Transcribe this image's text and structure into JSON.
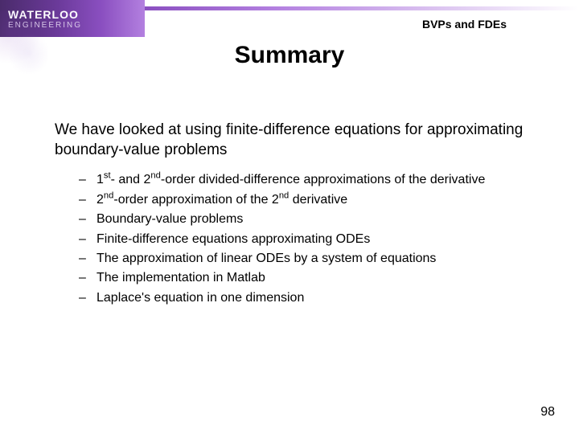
{
  "header": {
    "logo_top": "WATERLOO",
    "logo_bottom": "ENGINEERING",
    "label": "BVPs and FDEs"
  },
  "title": "Summary",
  "intro": "We have looked at using finite-difference equations for approximating boundary-value problems",
  "bullets": [
    {
      "pre": "1",
      "sup1": "st",
      "mid": "- and 2",
      "sup2": "nd",
      "post": "-order divided-difference approximations of the derivative"
    },
    {
      "pre": "2",
      "sup1": "nd",
      "mid": "-order approximation of the 2",
      "sup2": "nd",
      "post": " derivative"
    },
    {
      "pre": "Boundary-value problems",
      "sup1": "",
      "mid": "",
      "sup2": "",
      "post": ""
    },
    {
      "pre": "Finite-difference equations approximating ODEs",
      "sup1": "",
      "mid": "",
      "sup2": "",
      "post": ""
    },
    {
      "pre": "The approximation of linear ODEs by a system of equations",
      "sup1": "",
      "mid": "",
      "sup2": "",
      "post": ""
    },
    {
      "pre": "The implementation in Matlab",
      "sup1": "",
      "mid": "",
      "sup2": "",
      "post": ""
    },
    {
      "pre": "Laplace's equation in one dimension",
      "sup1": "",
      "mid": "",
      "sup2": "",
      "post": ""
    }
  ],
  "page_number": "98",
  "colors": {
    "background": "#ffffff",
    "text": "#000000",
    "brand_purple": "#6b3a9a"
  }
}
